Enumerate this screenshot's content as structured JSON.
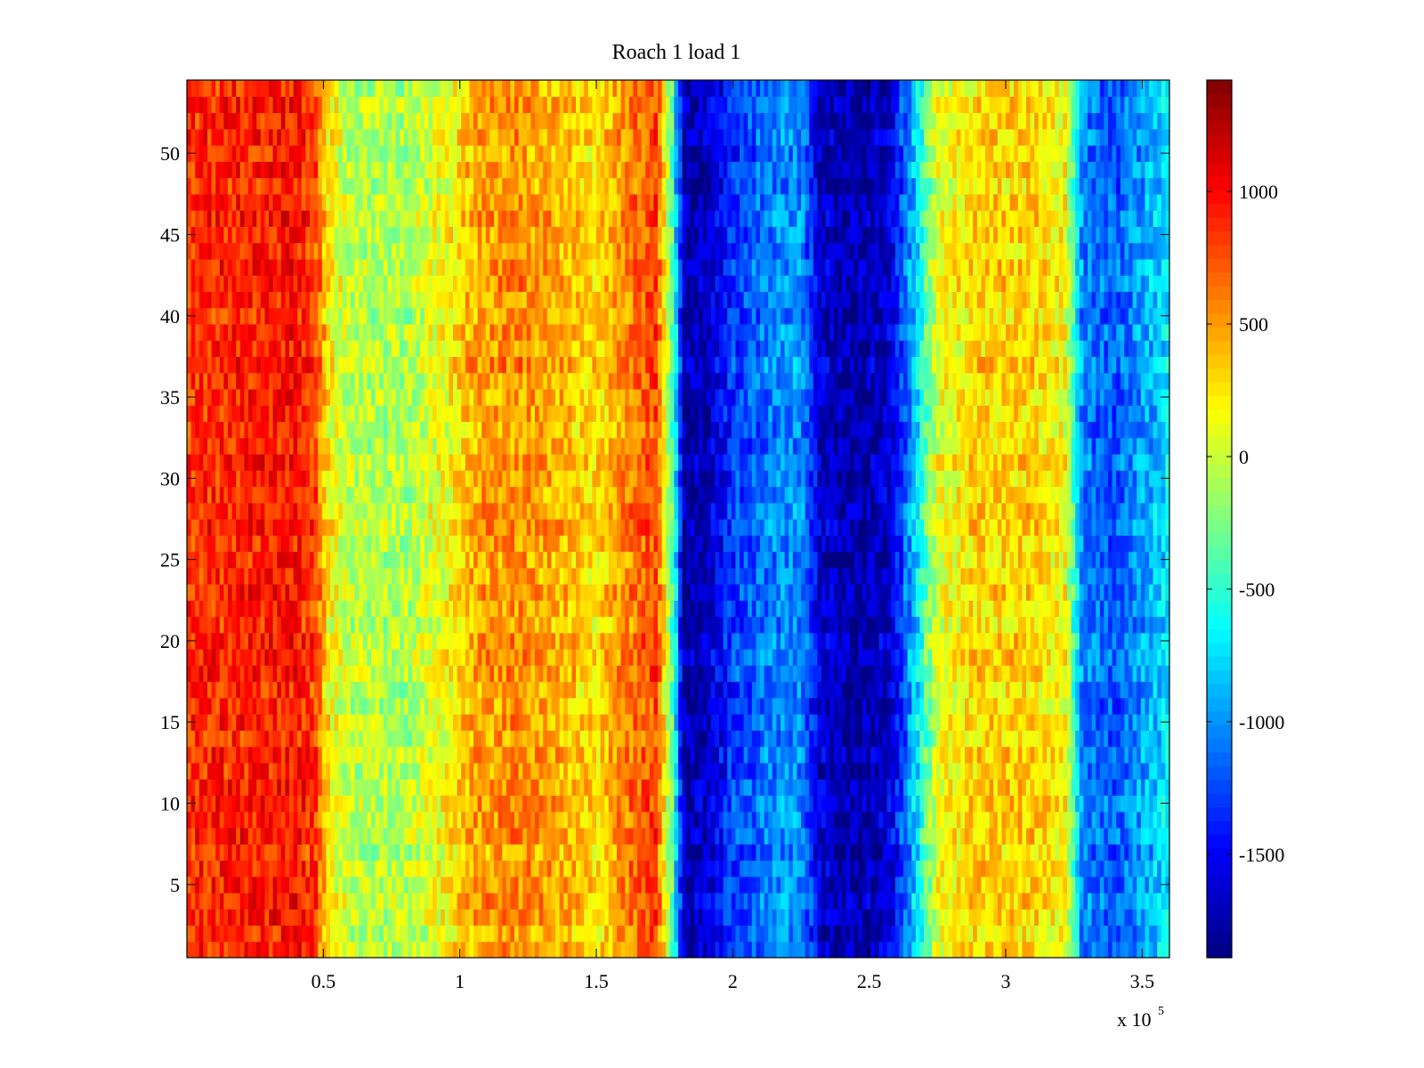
{
  "chart_data": {
    "type": "heatmap",
    "title": "Roach 1 load 1",
    "xlabel": "",
    "ylabel": "",
    "x_range": [
      0,
      360000
    ],
    "y_range": [
      1,
      54
    ],
    "x_ticks": [
      50000,
      100000,
      150000,
      200000,
      250000,
      300000,
      350000
    ],
    "x_tick_labels": [
      "0.5",
      "1",
      "1.5",
      "2",
      "2.5",
      "3",
      "3.5"
    ],
    "x_exponent_label": "x 10",
    "x_exponent": "5",
    "y_ticks": [
      5,
      10,
      15,
      20,
      25,
      30,
      35,
      40,
      45,
      50
    ],
    "y_tick_labels": [
      "5",
      "10",
      "15",
      "20",
      "25",
      "30",
      "35",
      "40",
      "45",
      "50"
    ],
    "colorbar": {
      "colormap": "jet",
      "range": [
        -1890,
        1420
      ],
      "ticks": [
        1000,
        500,
        0,
        -500,
        -1000,
        -1500
      ],
      "tick_labels": [
        "1000",
        "500",
        "0",
        "-500",
        "-1000",
        "-1500"
      ]
    },
    "column_profile": {
      "description_x_units": "x",
      "x": [
        0,
        20000,
        40000,
        47000,
        52000,
        60000,
        80000,
        95000,
        105000,
        120000,
        140000,
        150000,
        160000,
        172000,
        178000,
        182000,
        190000,
        200000,
        215000,
        225000,
        232000,
        245000,
        258000,
        266000,
        275000,
        290000,
        310000,
        322000,
        328000,
        340000,
        355000,
        360000
      ],
      "values": [
        850,
        900,
        950,
        800,
        200,
        -50,
        -100,
        150,
        450,
        550,
        400,
        250,
        550,
        800,
        -400,
        -1750,
        -1700,
        -1300,
        -1050,
        -1000,
        -1650,
        -1800,
        -1600,
        -900,
        100,
        300,
        300,
        150,
        -1050,
        -1200,
        -850,
        -700
      ]
    },
    "grid": false,
    "legend": "colorbar-right"
  }
}
